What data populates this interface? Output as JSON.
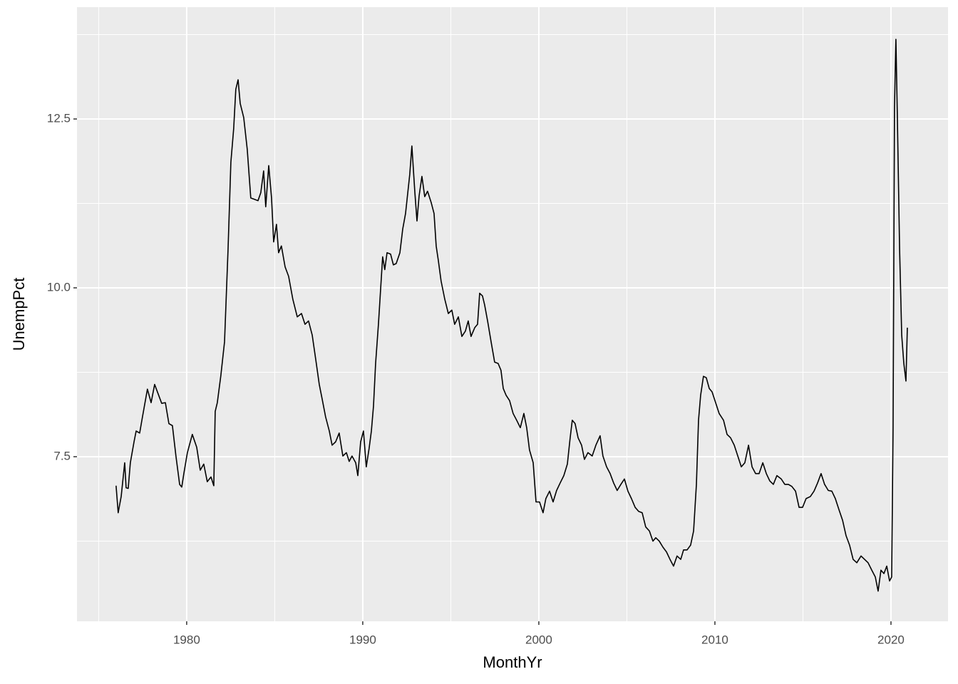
{
  "chart_data": {
    "type": "line",
    "x_label": "MonthYr",
    "y_label": "UnempPct",
    "xlim": [
      1973.77,
      2023.24
    ],
    "xticks": [
      1980,
      1990,
      2000,
      2010,
      2020
    ],
    "ylim": [
      5.063,
      14.156
    ],
    "yticks": [
      7.5,
      {
        "value": 10,
        "label": "10.0"
      },
      12.5
    ],
    "grid": true,
    "color": "#000000",
    "x": [
      1975.99,
      1976.11,
      1976.28,
      1976.48,
      1976.56,
      1976.68,
      1976.8,
      1977.01,
      1977.13,
      1977.33,
      1977.49,
      1977.77,
      1977.98,
      1978.18,
      1978.38,
      1978.58,
      1978.79,
      1978.99,
      1979.19,
      1979.39,
      1979.6,
      1979.72,
      1979.84,
      1980.04,
      1980.32,
      1980.57,
      1980.77,
      1980.97,
      1981.17,
      1981.38,
      1981.54,
      1981.62,
      1981.74,
      1981.94,
      1982.15,
      1982.35,
      1982.51,
      1982.67,
      1982.79,
      1982.92,
      1983.04,
      1983.24,
      1983.44,
      1983.64,
      1983.85,
      1984.05,
      1984.21,
      1984.37,
      1984.49,
      1984.66,
      1984.82,
      1984.94,
      1985.1,
      1985.22,
      1985.38,
      1985.59,
      1985.79,
      1986.03,
      1986.28,
      1986.52,
      1986.72,
      1986.92,
      1987.13,
      1987.33,
      1987.53,
      1987.69,
      1987.89,
      1988.1,
      1988.26,
      1988.46,
      1988.66,
      1988.87,
      1989.07,
      1989.23,
      1989.39,
      1989.6,
      1989.72,
      1989.88,
      1990.04,
      1990.2,
      1990.36,
      1990.49,
      1990.61,
      1990.73,
      1990.89,
      1991.01,
      1991.13,
      1991.25,
      1991.38,
      1991.58,
      1991.74,
      1991.9,
      1992.11,
      1992.27,
      1992.43,
      1992.55,
      1992.67,
      1992.79,
      1992.96,
      1993.08,
      1993.2,
      1993.36,
      1993.52,
      1993.68,
      1993.89,
      1994.05,
      1994.17,
      1994.29,
      1994.45,
      1994.66,
      1994.86,
      1995.06,
      1995.22,
      1995.43,
      1995.63,
      1995.83,
      1995.99,
      1996.15,
      1996.36,
      1996.52,
      1996.64,
      1996.8,
      1996.92,
      1997.09,
      1997.29,
      1997.49,
      1997.69,
      1997.85,
      1997.98,
      1998.14,
      1998.34,
      1998.54,
      1998.74,
      1998.95,
      1999.15,
      1999.31,
      1999.47,
      1999.68,
      1999.84,
      2000.04,
      2000.24,
      2000.4,
      2000.61,
      2000.81,
      2001.01,
      2001.21,
      2001.42,
      2001.62,
      2001.78,
      2001.9,
      2002.06,
      2002.23,
      2002.43,
      2002.59,
      2002.79,
      2003.03,
      2003.24,
      2003.48,
      2003.64,
      2003.85,
      2004.05,
      2004.25,
      2004.45,
      2004.66,
      2004.86,
      2005.06,
      2005.26,
      2005.47,
      2005.67,
      2005.87,
      2006.07,
      2006.28,
      2006.48,
      2006.64,
      2006.84,
      2007.05,
      2007.25,
      2007.45,
      2007.65,
      2007.85,
      2008.06,
      2008.22,
      2008.42,
      2008.62,
      2008.79,
      2008.95,
      2009.07,
      2009.19,
      2009.35,
      2009.51,
      2009.68,
      2009.84,
      2010.04,
      2010.24,
      2010.49,
      2010.69,
      2010.89,
      2011.1,
      2011.3,
      2011.5,
      2011.7,
      2011.91,
      2012.11,
      2012.31,
      2012.51,
      2012.72,
      2012.92,
      2013.12,
      2013.32,
      2013.52,
      2013.77,
      2013.97,
      2014.17,
      2014.37,
      2014.58,
      2014.78,
      2014.98,
      2015.18,
      2015.42,
      2015.63,
      2015.83,
      2016.03,
      2016.23,
      2016.44,
      2016.64,
      2016.84,
      2017.04,
      2017.25,
      2017.45,
      2017.65,
      2017.85,
      2018.06,
      2018.3,
      2018.5,
      2018.7,
      2018.91,
      2019.11,
      2019.27,
      2019.43,
      2019.6,
      2019.76,
      2019.92,
      2020.04,
      2020.12,
      2020.2,
      2020.28,
      2020.36,
      2020.49,
      2020.61,
      2020.73,
      2020.85,
      2020.93
    ],
    "values": [
      7.07,
      6.67,
      6.91,
      7.41,
      7.04,
      7.03,
      7.41,
      7.72,
      7.88,
      7.85,
      8.09,
      8.5,
      8.3,
      8.57,
      8.43,
      8.29,
      8.3,
      7.99,
      7.96,
      7.51,
      7.09,
      7.05,
      7.25,
      7.56,
      7.83,
      7.64,
      7.3,
      7.39,
      7.13,
      7.2,
      7.07,
      8.17,
      8.3,
      8.7,
      9.2,
      10.57,
      11.86,
      12.36,
      12.94,
      13.08,
      12.73,
      12.52,
      12.05,
      11.33,
      11.31,
      11.29,
      11.41,
      11.73,
      11.2,
      11.81,
      11.33,
      10.68,
      10.94,
      10.52,
      10.62,
      10.31,
      10.17,
      9.83,
      9.57,
      9.62,
      9.46,
      9.51,
      9.3,
      8.94,
      8.57,
      8.36,
      8.09,
      7.88,
      7.67,
      7.72,
      7.85,
      7.51,
      7.56,
      7.43,
      7.51,
      7.41,
      7.22,
      7.72,
      7.88,
      7.35,
      7.62,
      7.88,
      8.25,
      8.88,
      9.46,
      9.96,
      10.46,
      10.27,
      10.52,
      10.5,
      10.34,
      10.36,
      10.52,
      10.87,
      11.1,
      11.39,
      11.68,
      12.1,
      11.41,
      10.99,
      11.36,
      11.65,
      11.35,
      11.43,
      11.26,
      11.1,
      10.62,
      10.41,
      10.1,
      9.83,
      9.62,
      9.67,
      9.46,
      9.57,
      9.28,
      9.36,
      9.51,
      9.28,
      9.41,
      9.46,
      9.92,
      9.88,
      9.75,
      9.51,
      9.2,
      8.9,
      8.88,
      8.78,
      8.51,
      8.41,
      8.33,
      8.14,
      8.04,
      7.93,
      8.14,
      7.93,
      7.6,
      7.41,
      6.83,
      6.83,
      6.67,
      6.88,
      6.99,
      6.83,
      7.0,
      7.11,
      7.22,
      7.39,
      7.78,
      8.04,
      7.99,
      7.78,
      7.67,
      7.46,
      7.56,
      7.51,
      7.67,
      7.81,
      7.51,
      7.35,
      7.25,
      7.11,
      7.0,
      7.09,
      7.17,
      6.99,
      6.88,
      6.75,
      6.69,
      6.67,
      6.46,
      6.4,
      6.25,
      6.3,
      6.25,
      6.16,
      6.09,
      5.98,
      5.88,
      6.03,
      5.98,
      6.12,
      6.12,
      6.19,
      6.4,
      7.09,
      8.04,
      8.41,
      8.69,
      8.67,
      8.51,
      8.46,
      8.3,
      8.14,
      8.04,
      7.83,
      7.78,
      7.67,
      7.51,
      7.35,
      7.41,
      7.67,
      7.35,
      7.25,
      7.25,
      7.41,
      7.25,
      7.14,
      7.09,
      7.22,
      7.17,
      7.09,
      7.09,
      7.06,
      6.99,
      6.75,
      6.75,
      6.88,
      6.91,
      6.99,
      7.11,
      7.25,
      7.09,
      7.0,
      6.99,
      6.88,
      6.72,
      6.56,
      6.33,
      6.19,
      5.98,
      5.93,
      6.03,
      5.98,
      5.93,
      5.82,
      5.72,
      5.51,
      5.82,
      5.77,
      5.88,
      5.66,
      5.72,
      7.93,
      12.68,
      13.68,
      12.57,
      10.57,
      9.3,
      8.88,
      8.62,
      9.41
    ]
  }
}
